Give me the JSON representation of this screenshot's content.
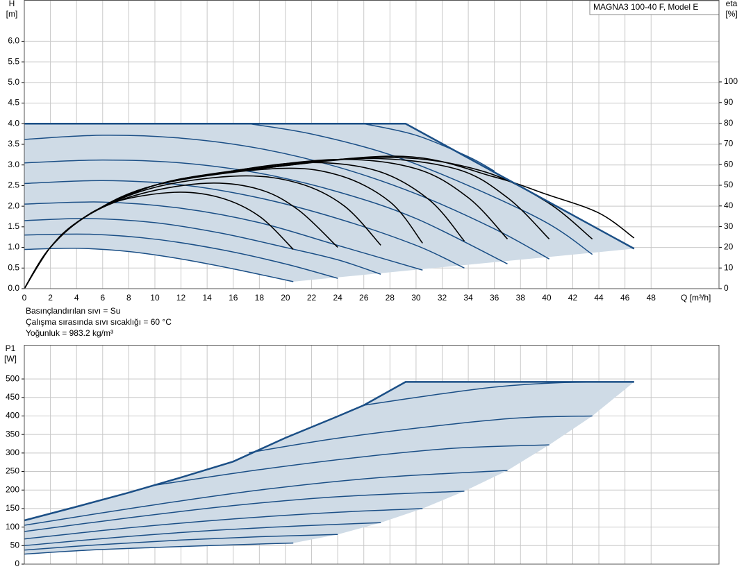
{
  "chart_data": [
    {
      "type": "line",
      "title": "MAGNA3 100-40 F, Model E",
      "y_label": "H",
      "y_unit": "[m]",
      "y2_label": "eta",
      "y2_unit": "[%]",
      "x_label": "Q [m³/h]",
      "annotations": [
        "Basınçlandırılan sıvı = Su",
        "Çalışma sırasında sıvı sıcaklığı = 60 °C",
        "Yoğunluk = 983.2 kg/m³"
      ],
      "xlim": [
        0,
        53.2
      ],
      "ylim": [
        0,
        7
      ],
      "y2lim": [
        0,
        139.6
      ],
      "grid": true,
      "xticks": [
        0,
        2,
        4,
        6,
        8,
        10,
        12,
        14,
        16,
        18,
        20,
        22,
        24,
        26,
        28,
        30,
        32,
        34,
        36,
        38,
        40,
        42,
        44,
        46,
        48
      ],
      "yticks": [
        {
          "value": 0,
          "label": "0.0"
        },
        0.5,
        {
          "value": 1,
          "label": "1.0"
        },
        1.5,
        {
          "value": 2,
          "label": "2.0"
        },
        2.5,
        {
          "value": 3,
          "label": "3.0"
        },
        3.5,
        {
          "value": 4,
          "label": "4.0"
        },
        4.5,
        {
          "value": 5,
          "label": "5.0"
        },
        5.5,
        {
          "value": 6,
          "label": "6.0"
        }
      ],
      "y2ticks": [
        0,
        10,
        20,
        30,
        40,
        50,
        60,
        70,
        80,
        90,
        100
      ],
      "area": {
        "color": "#cfdbe6",
        "x": [
          0,
          29.2,
          46.7,
          20.6,
          16,
          12,
          8,
          4,
          0
        ],
        "values": [
          4,
          4,
          0.97,
          0.17,
          0.48,
          0.72,
          0.9,
          0.98,
          0.95
        ]
      },
      "boundary": {
        "color": "#1b4f86",
        "x": [
          0,
          29.2,
          46.7
        ],
        "values": [
          4,
          4,
          0.97
        ]
      },
      "series": [
        {
          "color": "#1b4f86",
          "x": [
            0,
            4,
            8,
            12,
            16,
            20.6
          ],
          "values": [
            0.95,
            0.98,
            0.9,
            0.72,
            0.48,
            0.17
          ]
        },
        {
          "color": "#1b4f86",
          "x": [
            0,
            5,
            10,
            15,
            20,
            24
          ],
          "values": [
            1.3,
            1.32,
            1.2,
            0.95,
            0.6,
            0.25
          ]
        },
        {
          "color": "#1b4f86",
          "x": [
            0,
            5,
            10,
            15,
            20,
            24,
            27.3
          ],
          "values": [
            1.65,
            1.7,
            1.6,
            1.35,
            1.0,
            0.7,
            0.35
          ]
        },
        {
          "color": "#1b4f86",
          "x": [
            0,
            6,
            12,
            18,
            24,
            30.5
          ],
          "values": [
            2.05,
            2.1,
            1.95,
            1.6,
            1.05,
            0.45
          ]
        },
        {
          "color": "#1b4f86",
          "x": [
            0,
            6,
            12,
            18,
            24,
            30,
            33.7
          ],
          "values": [
            2.55,
            2.62,
            2.52,
            2.2,
            1.7,
            1.05,
            0.5
          ]
        },
        {
          "color": "#1b4f86",
          "x": [
            0,
            6,
            12,
            18,
            24,
            30,
            37
          ],
          "values": [
            3.05,
            3.12,
            3.05,
            2.8,
            2.35,
            1.7,
            0.6
          ]
        },
        {
          "color": "#1b4f86",
          "x": [
            0,
            6,
            12,
            18,
            24,
            30,
            36,
            40.2
          ],
          "values": [
            3.62,
            3.72,
            3.65,
            3.4,
            2.95,
            2.3,
            1.45,
            0.72
          ]
        },
        {
          "color": "#1b4f86",
          "x": [
            17.2,
            22,
            28,
            34,
            40,
            43.5
          ],
          "values": [
            4,
            3.75,
            3.25,
            2.5,
            1.6,
            0.83
          ]
        },
        {
          "color": "#1b4f86",
          "x": [
            26,
            30,
            34,
            36
          ],
          "values": [
            4,
            3.72,
            3.2,
            2.85
          ]
        },
        {
          "color": "#000000",
          "axis": "y2",
          "x": [
            0,
            2,
            4,
            7,
            11.5,
            15,
            18,
            20.6
          ],
          "values": [
            0,
            20,
            32,
            42,
            46.6,
            44,
            35,
            19
          ]
        },
        {
          "color": "#000000",
          "axis": "y2",
          "x": [
            0,
            2,
            5,
            9,
            14,
            18,
            21,
            24
          ],
          "values": [
            0,
            20,
            36,
            46,
            51,
            48,
            38,
            20
          ]
        },
        {
          "color": "#000000",
          "axis": "y2",
          "x": [
            0,
            2,
            5,
            10,
            16.5,
            21,
            24.5,
            27.3
          ],
          "values": [
            0,
            20,
            36,
            49,
            54.5,
            51,
            40,
            21
          ]
        },
        {
          "color": "#000000",
          "axis": "y2",
          "x": [
            0,
            2,
            5,
            10,
            19,
            24,
            28,
            30.5
          ],
          "values": [
            0,
            20,
            36,
            50,
            58,
            55,
            42,
            22
          ]
        },
        {
          "color": "#000000",
          "axis": "y2",
          "x": [
            0,
            2,
            5,
            10,
            15,
            21.5,
            27,
            31,
            33.7
          ],
          "values": [
            0,
            20,
            36,
            50,
            56,
            61,
            57,
            43,
            23
          ]
        },
        {
          "color": "#000000",
          "axis": "y2",
          "x": [
            0,
            2,
            5,
            10,
            16,
            24,
            30,
            34,
            37
          ],
          "values": [
            0,
            20,
            36,
            50,
            57,
            62.5,
            58,
            44,
            24
          ]
        },
        {
          "color": "#000000",
          "axis": "y2",
          "x": [
            0,
            2,
            5,
            10,
            17,
            26,
            33,
            37,
            40.2
          ],
          "values": [
            0,
            20,
            36,
            50,
            57.5,
            63,
            58,
            44,
            24
          ]
        },
        {
          "color": "#000000",
          "axis": "y2",
          "x": [
            0,
            2,
            5,
            10,
            18,
            28,
            35,
            40,
            43.5
          ],
          "values": [
            0,
            20,
            36,
            50,
            58,
            63.5,
            57,
            42,
            24
          ]
        },
        {
          "color": "#000000",
          "axis": "y2",
          "x": [
            0,
            2,
            5,
            10,
            18,
            29,
            36,
            40,
            44,
            46.7
          ],
          "values": [
            0,
            20,
            36,
            50,
            58,
            64,
            54,
            45.6,
            36.6,
            24.5
          ]
        }
      ]
    },
    {
      "type": "line",
      "y_label": "P1",
      "y_unit": "[W]",
      "xlim": [
        0,
        53.2
      ],
      "ylim": [
        0,
        592
      ],
      "grid": true,
      "yticks": [
        0,
        50,
        100,
        150,
        200,
        250,
        300,
        350,
        400,
        450,
        500
      ],
      "area": {
        "color": "#cfdbe6",
        "x": [
          0,
          4,
          8,
          12,
          16,
          20,
          24,
          26,
          29.2,
          46.7,
          43.5,
          40.2,
          37,
          33.7,
          30.5,
          27.3,
          24,
          20.6,
          15,
          10,
          5,
          0
        ],
        "values": [
          118,
          155,
          193,
          234,
          277,
          341,
          399,
          429,
          492,
          492,
          400,
          322,
          253,
          197,
          150,
          112,
          80,
          57,
          51,
          45,
          38,
          27
        ]
      },
      "boundary": {
        "color": "#1b4f86",
        "x": [
          0,
          4,
          8,
          12,
          16,
          20,
          24,
          26,
          29.2,
          46.7
        ],
        "values": [
          118,
          155,
          193,
          234,
          277,
          341,
          399,
          429,
          492,
          492
        ]
      },
      "series": [
        {
          "color": "#1b4f86",
          "x": [
            0,
            5,
            10,
            15,
            20.6
          ],
          "values": [
            27,
            38,
            45,
            51,
            57
          ]
        },
        {
          "color": "#1b4f86",
          "x": [
            0,
            6,
            12,
            18,
            24
          ],
          "values": [
            38,
            53,
            65,
            74,
            80
          ]
        },
        {
          "color": "#1b4f86",
          "x": [
            0,
            7,
            14,
            21,
            27.3
          ],
          "values": [
            50,
            72,
            90,
            103,
            112
          ]
        },
        {
          "color": "#1b4f86",
          "x": [
            0,
            8,
            16,
            24,
            30.5
          ],
          "values": [
            68,
            98,
            122,
            140,
            150
          ]
        },
        {
          "color": "#1b4f86",
          "x": [
            0,
            8,
            16,
            24,
            33.7
          ],
          "values": [
            88,
            125,
            158,
            182,
            197
          ]
        },
        {
          "color": "#1b4f86",
          "x": [
            0,
            9,
            18,
            27,
            37
          ],
          "values": [
            105,
            155,
            200,
            233,
            253
          ]
        },
        {
          "color": "#1b4f86",
          "x": [
            10,
            18,
            26,
            33,
            40.2
          ],
          "values": [
            213,
            255,
            290,
            313,
            322
          ]
        },
        {
          "color": "#1b4f86",
          "x": [
            17.2,
            24,
            32,
            38,
            43.5
          ],
          "values": [
            301,
            340,
            375,
            395,
            400
          ]
        },
        {
          "color": "#1b4f86",
          "x": [
            26,
            31,
            36,
            41,
            46.7
          ],
          "values": [
            429,
            455,
            478,
            490,
            492
          ]
        }
      ]
    }
  ]
}
